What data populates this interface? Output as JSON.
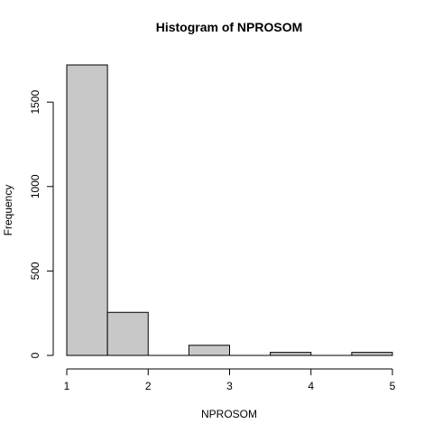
{
  "chart_data": {
    "type": "bar",
    "title": "Histogram of NPROSOM",
    "xlabel": "NPROSOM",
    "ylabel": "Frequency",
    "bins": [
      {
        "x0": 1.0,
        "x1": 1.5,
        "count": 1720
      },
      {
        "x0": 1.5,
        "x1": 2.0,
        "count": 255
      },
      {
        "x0": 2.0,
        "x1": 2.5,
        "count": 0
      },
      {
        "x0": 2.5,
        "x1": 3.0,
        "count": 60
      },
      {
        "x0": 3.0,
        "x1": 3.5,
        "count": 0
      },
      {
        "x0": 3.5,
        "x1": 4.0,
        "count": 18
      },
      {
        "x0": 4.0,
        "x1": 4.5,
        "count": 0
      },
      {
        "x0": 4.5,
        "x1": 5.0,
        "count": 18
      }
    ],
    "x_ticks": [
      "1",
      "2",
      "3",
      "4",
      "5"
    ],
    "y_ticks": [
      "0",
      "500",
      "1000",
      "1500"
    ],
    "xlim": [
      1,
      5
    ],
    "ylim": [
      0,
      1720
    ],
    "grid": false,
    "bar_fill": "#c8c8c8",
    "bar_stroke": "#000000"
  }
}
